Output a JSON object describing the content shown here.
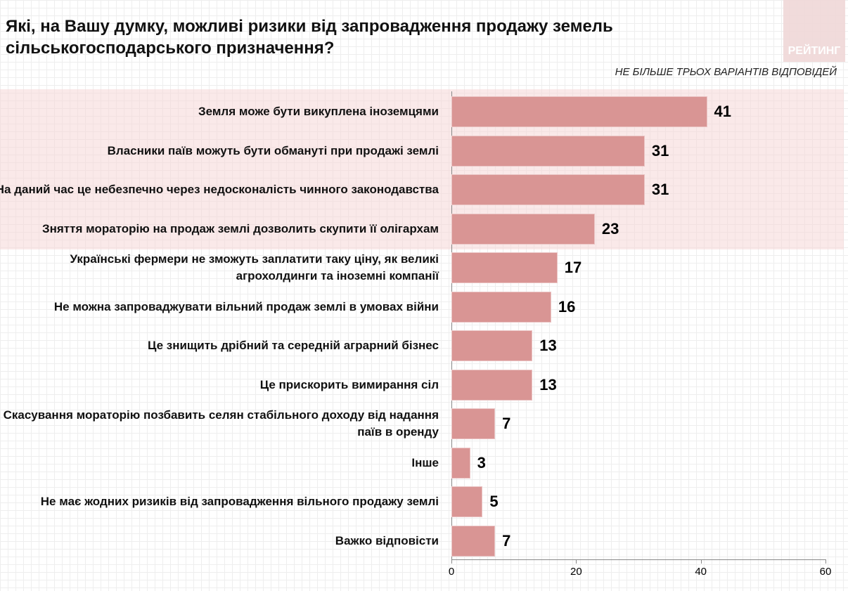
{
  "chart_data": {
    "type": "bar",
    "orientation": "horizontal",
    "title": "Які, на Вашу думку, можливі ризики від запровадження продажу земель сільськогосподарського призначення?",
    "subtitle": "НЕ БІЛЬШЕ ТРЬОХ ВАРІАНТІВ ВІДПОВІДЕЙ",
    "logo": "РЕЙТИНГ",
    "categories": [
      "Земля може бути викуплена іноземцями",
      "Власники паїв можуть бути обмануті при продажі землі",
      "На даний час це небезпечно через недосконалість чинного законодавства",
      "Зняття мораторію на продаж землі дозволить скупити її олігархам",
      "Українські фермери не зможуть заплатити таку ціну, як великі агрохолдинги та іноземні компанії",
      "Не можна запроваджувати вільний продаж землі в умовах війни",
      "Це знищить дрібний та середній аграрний бізнес",
      "Це прискорить вимирання сіл",
      "Скасування мораторію позбавить селян стабільного доходу від надання паїв в оренду",
      "Інше",
      "Не має жодних ризиків від запровадження вільного продажу землі",
      "Важко відповісти"
    ],
    "values": [
      41,
      31,
      31,
      23,
      17,
      16,
      13,
      13,
      7,
      3,
      5,
      7
    ],
    "xlim": [
      0,
      60
    ],
    "xticks": [
      "0",
      "20",
      "40",
      "60"
    ],
    "highlighted_top": 4,
    "bar_color": "#d99594"
  }
}
